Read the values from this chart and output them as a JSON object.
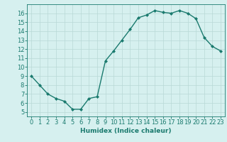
{
  "x": [
    0,
    1,
    2,
    3,
    4,
    5,
    6,
    7,
    8,
    9,
    10,
    11,
    12,
    13,
    14,
    15,
    16,
    17,
    18,
    19,
    20,
    21,
    22,
    23
  ],
  "y": [
    9,
    8,
    7,
    6.5,
    6.2,
    5.3,
    5.3,
    6.5,
    6.7,
    10.7,
    11.8,
    13.0,
    14.2,
    15.5,
    15.8,
    16.3,
    16.1,
    16.0,
    16.3,
    16.0,
    15.4,
    13.3,
    12.3,
    11.8
  ],
  "line_color": "#1a7a6e",
  "marker": "D",
  "marker_size": 2.0,
  "bg_color": "#d6f0ef",
  "grid_color": "#b8d8d6",
  "xlabel": "Humidex (Indice chaleur)",
  "xlim": [
    -0.5,
    23.5
  ],
  "ylim": [
    4.5,
    17.0
  ],
  "xticks": [
    0,
    1,
    2,
    3,
    4,
    5,
    6,
    7,
    8,
    9,
    10,
    11,
    12,
    13,
    14,
    15,
    16,
    17,
    18,
    19,
    20,
    21,
    22,
    23
  ],
  "yticks": [
    5,
    6,
    7,
    8,
    9,
    10,
    11,
    12,
    13,
    14,
    15,
    16
  ],
  "xlabel_fontsize": 6.5,
  "tick_fontsize": 6.0,
  "line_width": 1.0
}
